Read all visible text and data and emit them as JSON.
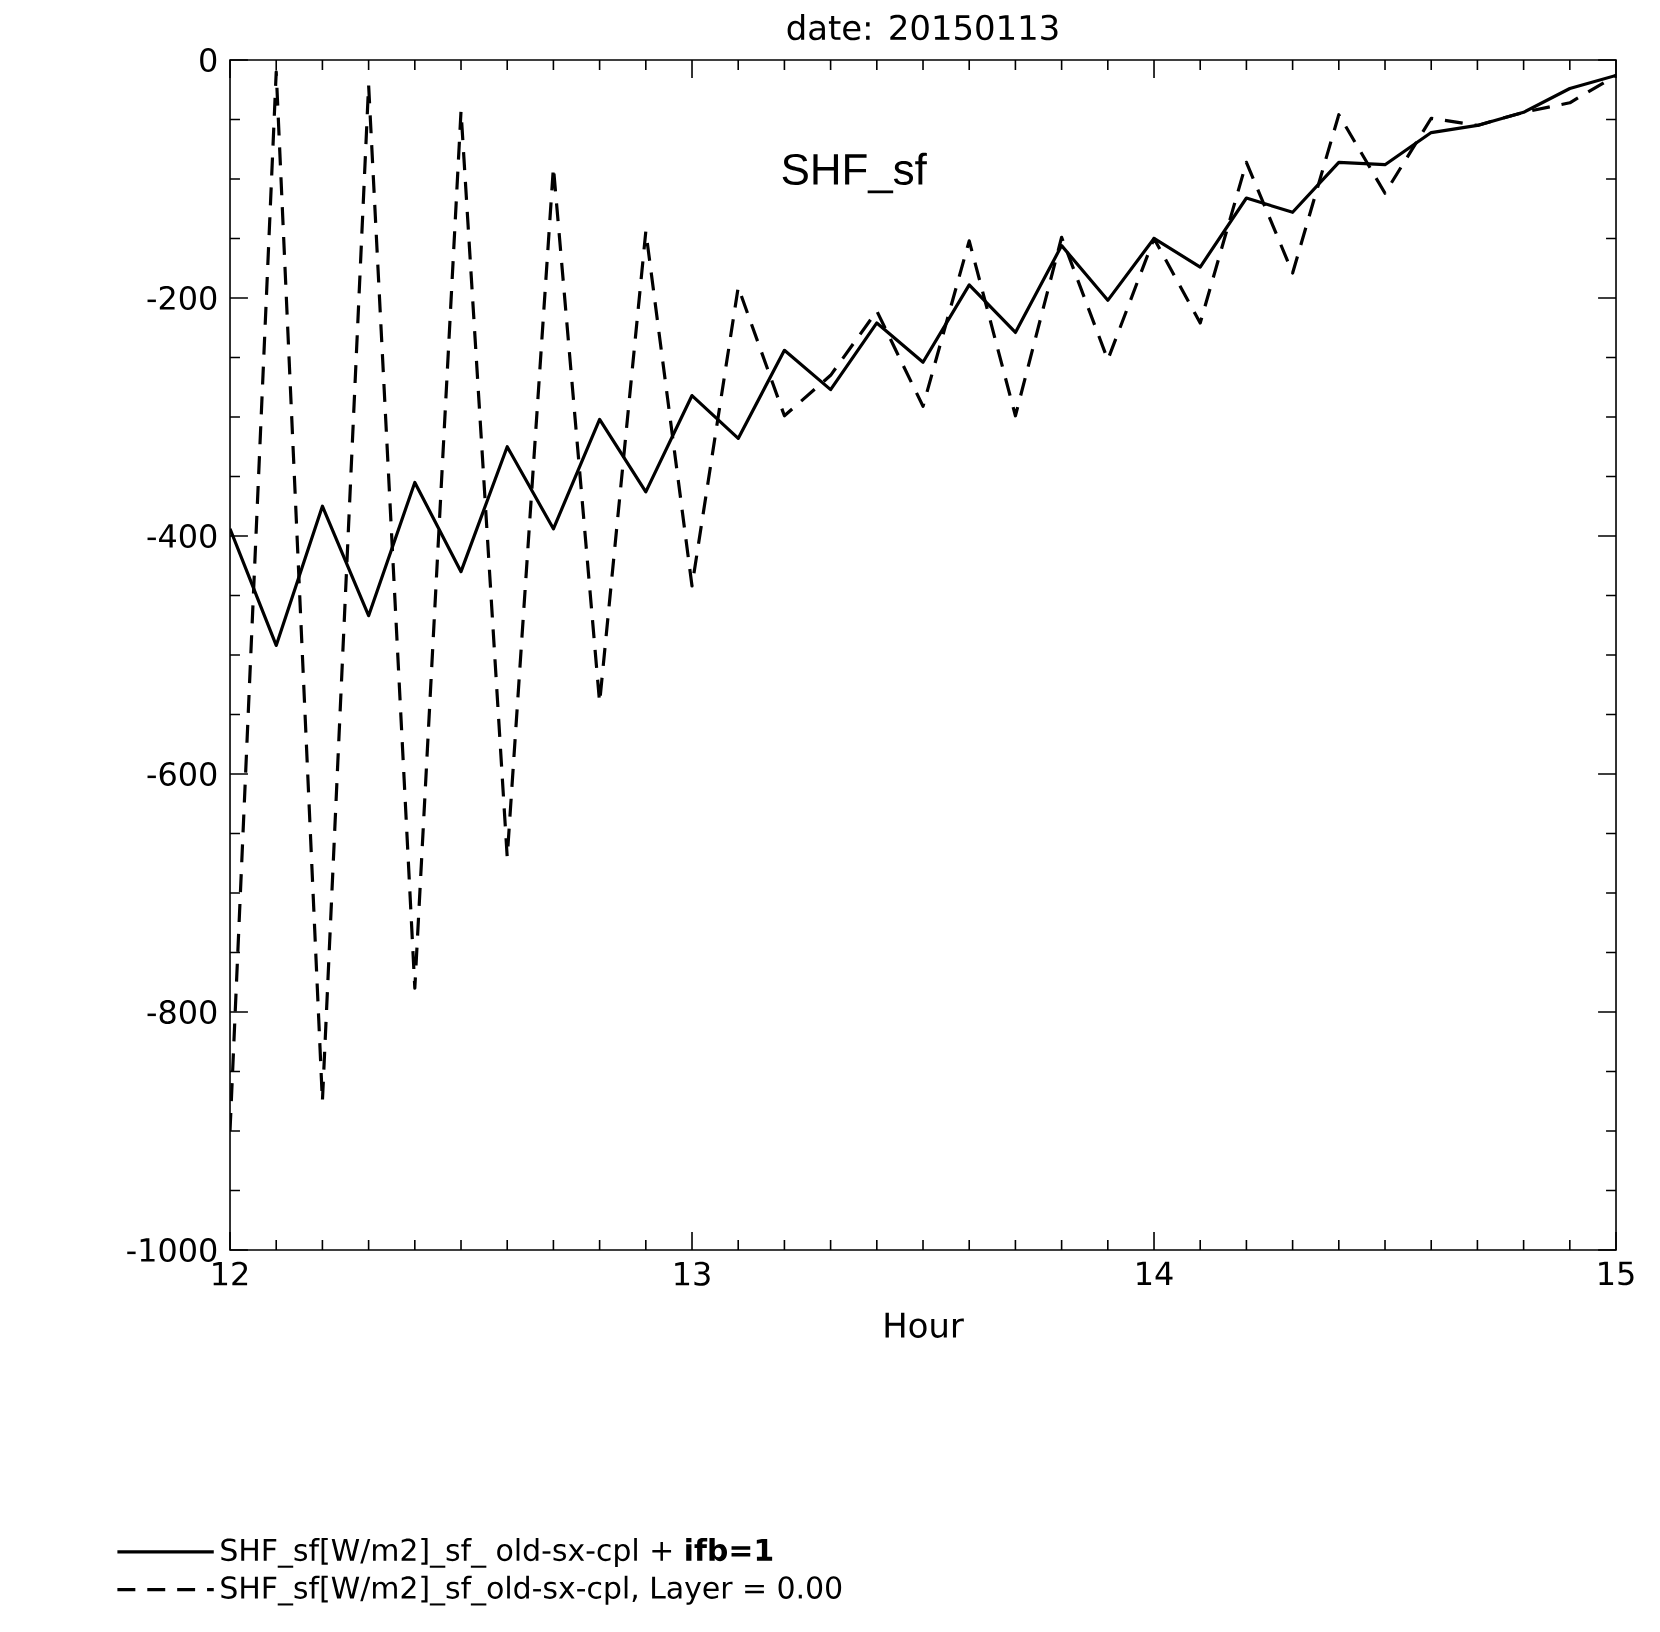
{
  "chart_data": {
    "type": "line",
    "title": "date:  20150113",
    "xlabel": "Hour",
    "annotations": [
      "SHF_sf"
    ],
    "x": [
      12.0,
      12.1,
      12.2,
      12.3,
      12.4,
      12.5,
      12.6,
      12.7,
      12.8,
      12.9,
      13.0,
      13.1,
      13.2,
      13.3,
      13.4,
      13.5,
      13.6,
      13.7,
      13.8,
      13.9,
      14.0,
      14.1,
      14.2,
      14.3,
      14.4,
      14.5,
      14.6,
      14.7,
      14.8,
      14.9,
      15.0
    ],
    "series": [
      {
        "name": "SHF_sf[W/m2]_sf_  old-sx-cpl + **ifb=1**",
        "color": "#000000",
        "line_style": "solid",
        "values": [
          -394,
          -492,
          -375,
          -467,
          -355,
          -430,
          -325,
          -394,
          -302,
          -363,
          -282,
          -318,
          -244,
          -277,
          -221,
          -254,
          -189,
          -229,
          -156,
          -202,
          -150,
          -174,
          -116,
          -128,
          -86,
          -88,
          -61,
          -55,
          -44,
          -24,
          -13
        ]
      },
      {
        "name": "SHF_sf[W/m2]_sf_old-sx-cpl, Layer =   0.00",
        "color": "#000000",
        "line_style": "dashed",
        "values": [
          -900,
          -10,
          -875,
          -21,
          -780,
          -43,
          -670,
          -90,
          -540,
          -144,
          -442,
          -191,
          -299,
          -265,
          -211,
          -291,
          -152,
          -299,
          -149,
          -252,
          -150,
          -221,
          -86,
          -179,
          -46,
          -112,
          -49,
          -55,
          -44,
          -36,
          -13
        ]
      }
    ],
    "xlim": [
      12,
      15
    ],
    "xticks": [
      12,
      13,
      14,
      15
    ],
    "ylim": [
      -1000,
      0
    ],
    "yticks": [
      -1000,
      -800,
      -600,
      -400,
      -200,
      0
    ],
    "grid": false,
    "legend": "bottom",
    "marker": "none"
  }
}
